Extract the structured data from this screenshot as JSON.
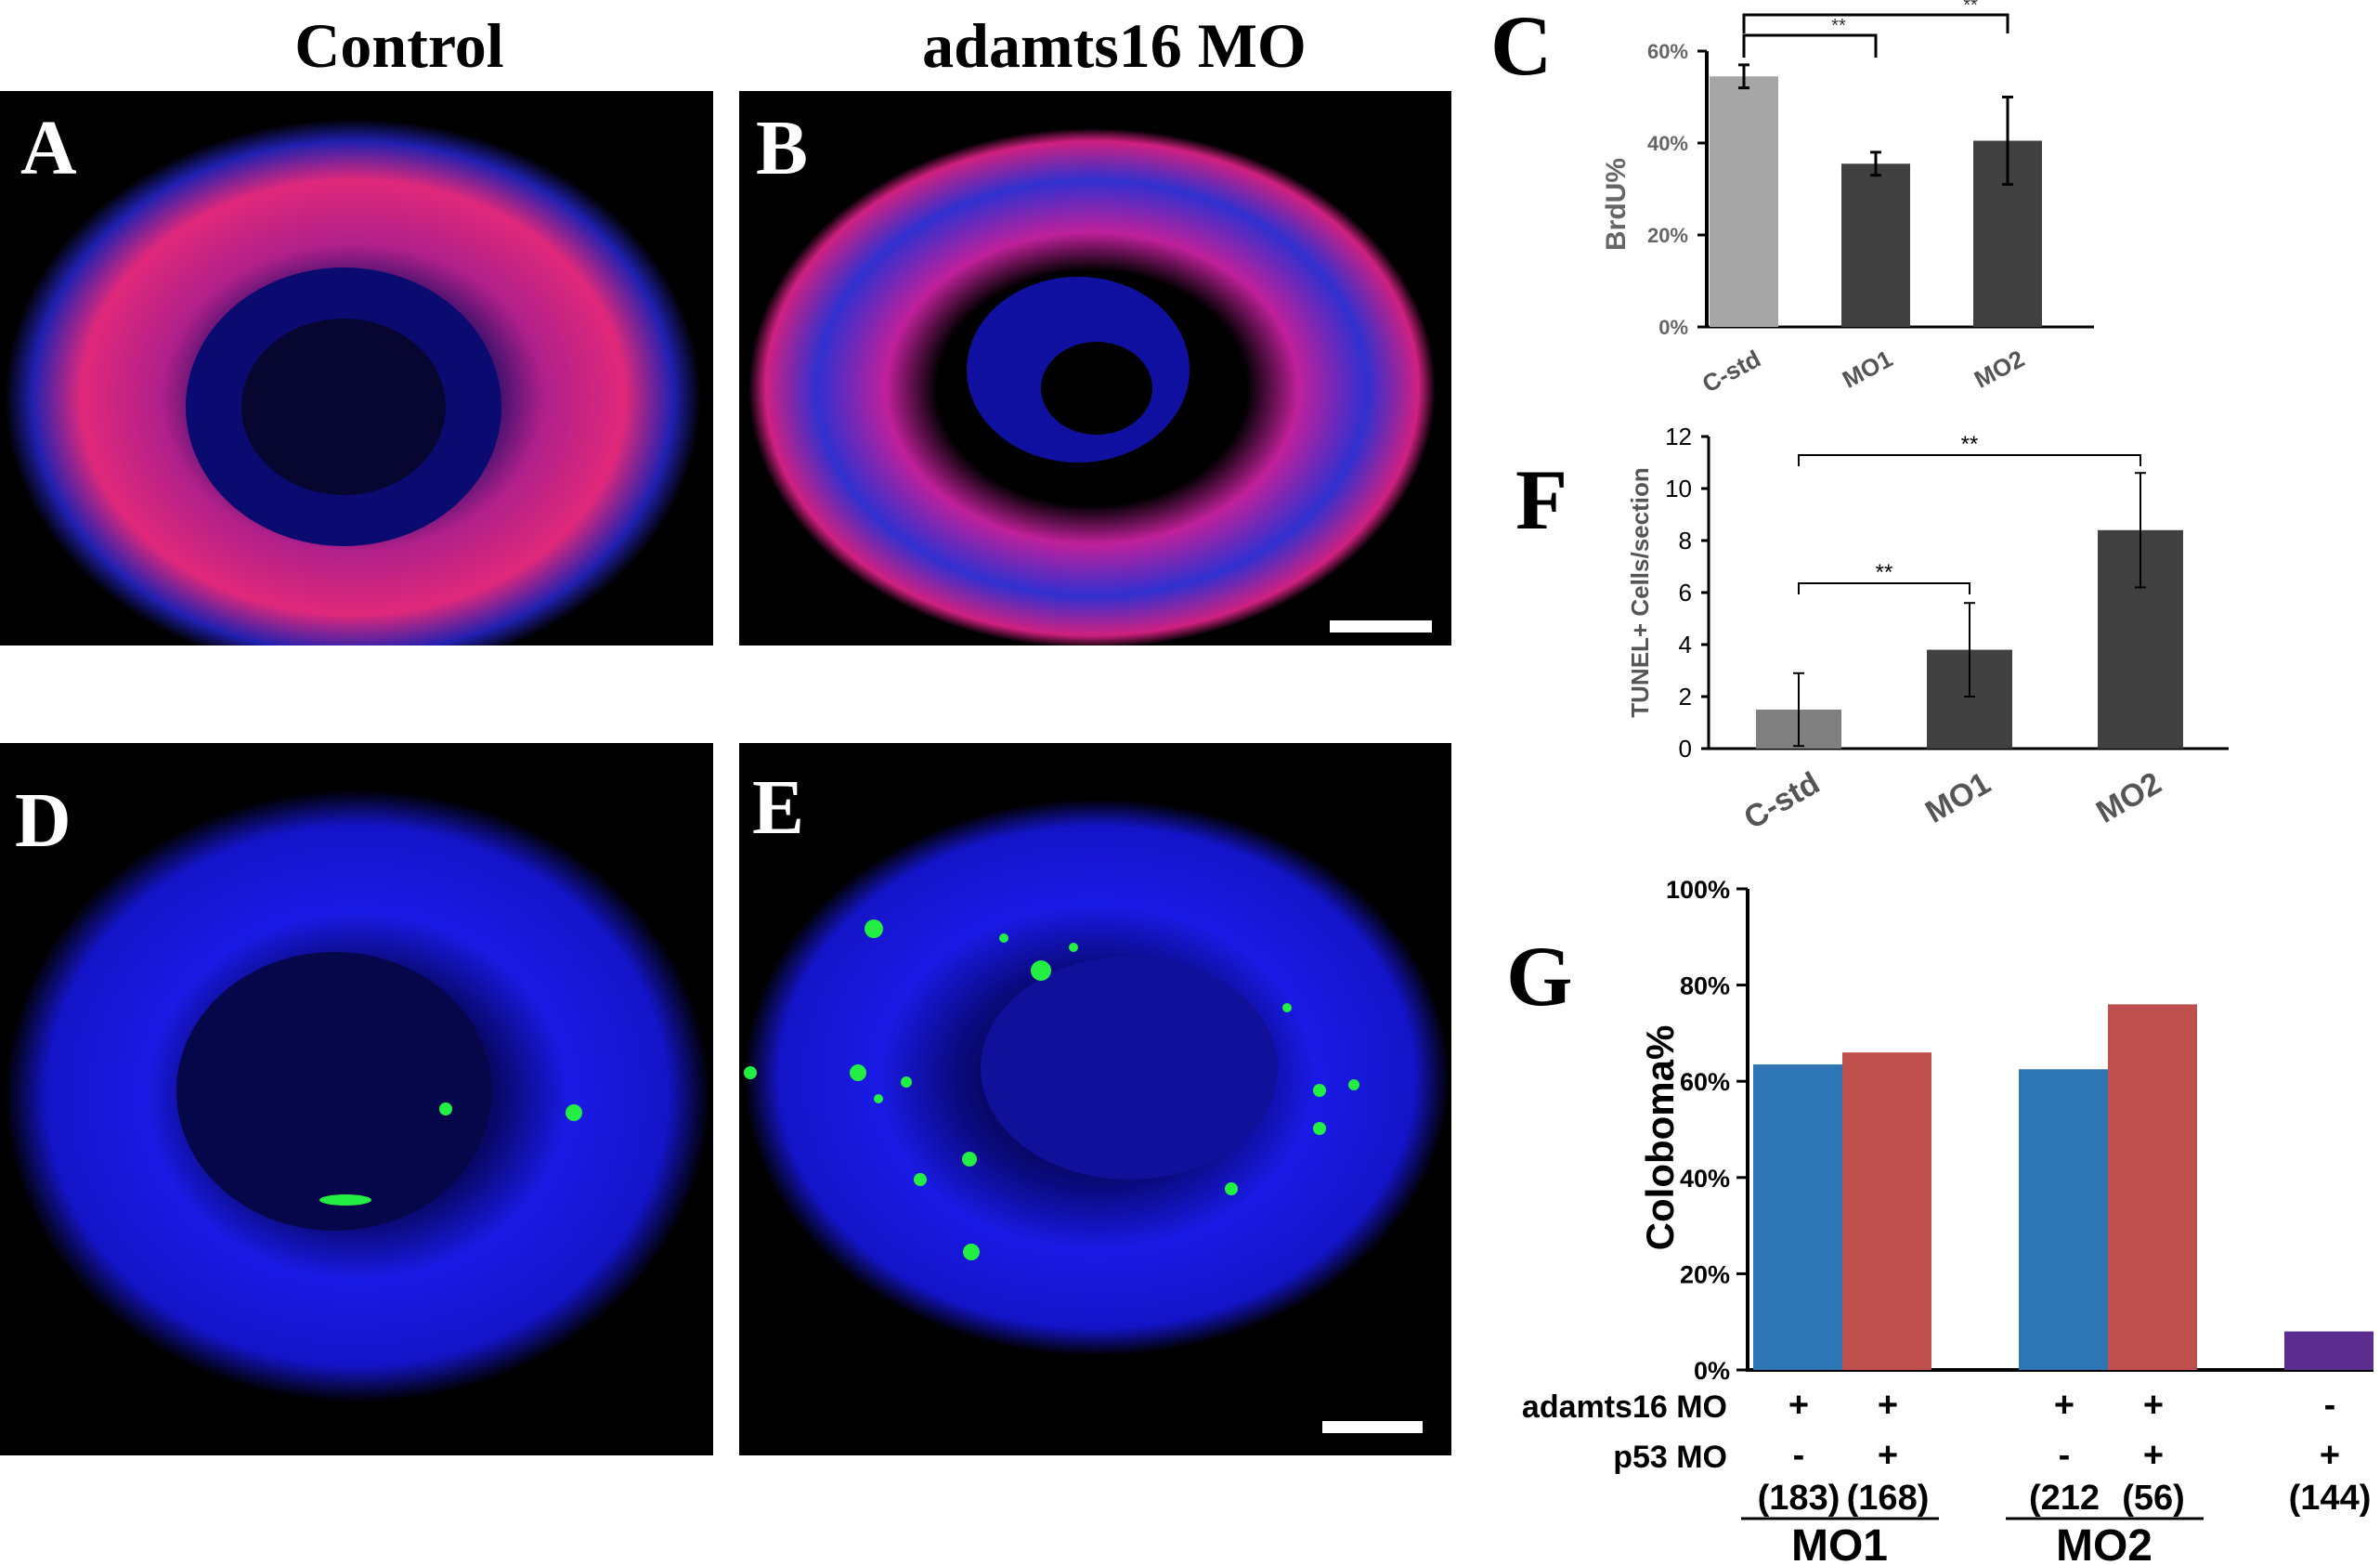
{
  "titles": {
    "control": "Control",
    "morphant": "adamts16 MO"
  },
  "panels": {
    "a": "A",
    "b": "B",
    "c": "C",
    "d": "D",
    "e": "E",
    "f": "F",
    "g": "G"
  },
  "colors": {
    "nuclei_blue": "#1a1ae6",
    "brdu_magenta": "#ff2a8a",
    "tunel_green": "#22ee44",
    "bar_light_gray": "#a6a6a6",
    "bar_mid_gray": "#808080",
    "bar_dark_gray": "#404040",
    "bar_blue": "#2e75b6",
    "bar_red": "#c0504d",
    "bar_purple": "#5b2d8e"
  },
  "chart_data": [
    {
      "panel": "C",
      "type": "bar",
      "categories": [
        "C-std",
        "MO1",
        "MO2"
      ],
      "values": [
        54.5,
        35.5,
        40.5
      ],
      "errors": [
        2.5,
        2.5,
        9.5
      ],
      "ylabel": "BrdU%",
      "ylim": [
        0,
        60
      ],
      "yticks": [
        "0%",
        "20%",
        "40%",
        "60%"
      ],
      "significance": [
        {
          "from": "C-std",
          "to": "MO1",
          "label": "**"
        },
        {
          "from": "C-std",
          "to": "MO2",
          "label": "**"
        }
      ]
    },
    {
      "panel": "F",
      "type": "bar",
      "categories": [
        "C-std",
        "MO1",
        "MO2"
      ],
      "values": [
        1.5,
        3.8,
        8.4
      ],
      "errors": [
        1.4,
        1.8,
        2.2
      ],
      "ylabel": "TUNEL+ Cells/section",
      "ylim": [
        0,
        12
      ],
      "yticks": [
        "0",
        "2",
        "4",
        "6",
        "8",
        "10",
        "12"
      ],
      "significance": [
        {
          "from": "C-std",
          "to": "MO1",
          "label": "**"
        },
        {
          "from": "C-std",
          "to": "MO2",
          "label": "**"
        }
      ]
    },
    {
      "panel": "G",
      "type": "bar",
      "ylabel": "Coloboma%",
      "ylim": [
        0,
        100
      ],
      "yticks": [
        "0%",
        "20%",
        "40%",
        "60%",
        "80%",
        "100%"
      ],
      "bars": [
        {
          "value": 63.5,
          "adamts16": "+",
          "p53": "-",
          "n": "(183)"
        },
        {
          "value": 66,
          "adamts16": "+",
          "p53": "+",
          "n": "(168)"
        },
        {
          "value": 62.5,
          "adamts16": "+",
          "p53": "-",
          "n": "(212"
        },
        {
          "value": 76,
          "adamts16": "+",
          "p53": "+",
          "n": "(56)"
        },
        {
          "value": 8,
          "adamts16": "-",
          "p53": "+",
          "n": "(144)"
        }
      ],
      "row_labels": {
        "adamts16": "adamts16 MO",
        "p53": "p53 MO"
      },
      "groups": [
        "MO1",
        "MO2"
      ]
    }
  ]
}
